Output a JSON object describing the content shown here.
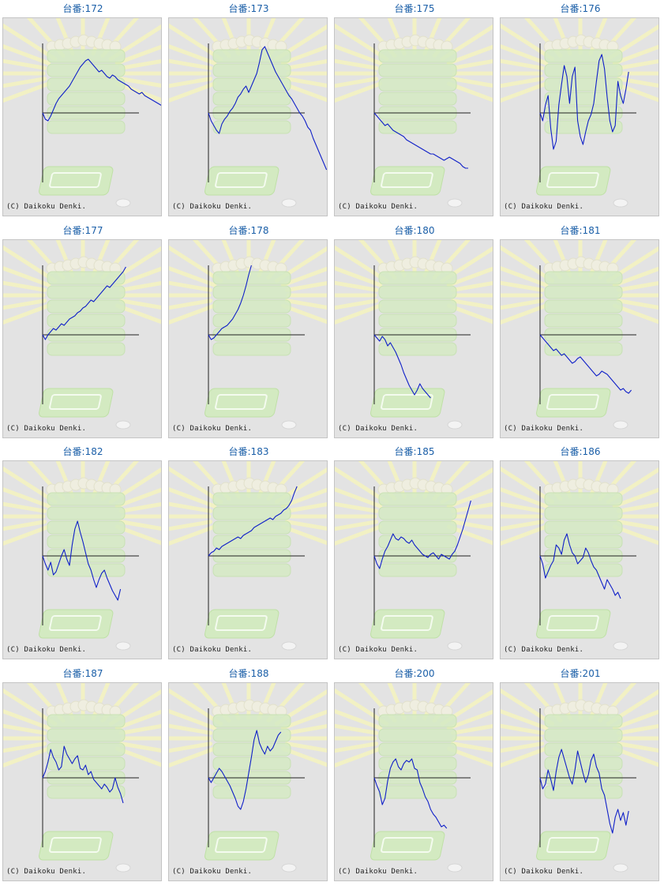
{
  "copyright": "(C) Daikoku Denki.",
  "chart_data": [
    {
      "type": "line",
      "title": "台番:172",
      "values": [
        0,
        -8,
        -10,
        -4,
        4,
        12,
        18,
        22,
        26,
        30,
        34,
        40,
        46,
        52,
        58,
        62,
        66,
        68,
        64,
        60,
        56,
        52,
        54,
        50,
        46,
        44,
        48,
        46,
        42,
        40,
        38,
        36,
        34,
        30,
        28,
        26,
        24,
        26,
        22,
        20,
        18,
        16,
        14,
        12,
        10,
        8,
        6,
        2,
        -4,
        -8,
        -6,
        -2,
        0,
        2,
        0,
        2,
        0
      ]
    },
    {
      "type": "line",
      "title": "台番:173",
      "values": [
        0,
        -10,
        -16,
        -22,
        -26,
        -14,
        -8,
        -4,
        2,
        6,
        12,
        20,
        24,
        30,
        34,
        26,
        34,
        42,
        50,
        64,
        80,
        84,
        76,
        68,
        60,
        52,
        46,
        40,
        34,
        28,
        22,
        18,
        12,
        6,
        0,
        -4,
        -10,
        -18,
        -22,
        -32,
        -40,
        -48,
        -56,
        -64,
        -72
      ]
    },
    {
      "type": "line",
      "title": "台番:175",
      "values": [
        0,
        -4,
        -8,
        -12,
        -16,
        -14,
        -18,
        -22,
        -24,
        -26,
        -28,
        -30,
        -34,
        -36,
        -38,
        -40,
        -42,
        -44,
        -46,
        -48,
        -50,
        -52,
        -52,
        -54,
        -56,
        -58,
        -60,
        -58,
        -56,
        -58,
        -60,
        -62,
        -64,
        -68,
        -70,
        -70
      ]
    },
    {
      "type": "line",
      "title": "台番:176",
      "values": [
        0,
        -10,
        10,
        22,
        -20,
        -46,
        -36,
        10,
        36,
        60,
        46,
        12,
        46,
        58,
        -10,
        -30,
        -40,
        -24,
        -10,
        -2,
        12,
        40,
        66,
        74,
        56,
        20,
        -10,
        -24,
        -16,
        40,
        22,
        12,
        30,
        52
      ]
    },
    {
      "type": "line",
      "title": "台番:177",
      "values": [
        0,
        -6,
        0,
        4,
        8,
        6,
        10,
        14,
        12,
        16,
        20,
        22,
        24,
        28,
        30,
        34,
        36,
        40,
        44,
        42,
        46,
        50,
        54,
        58,
        62,
        60,
        64,
        68,
        72,
        76,
        80,
        86
      ]
    },
    {
      "type": "line",
      "title": "台番:178",
      "values": [
        0,
        -6,
        -4,
        0,
        4,
        8,
        10,
        12,
        16,
        20,
        26,
        32,
        40,
        50,
        62,
        76,
        88
      ]
    },
    {
      "type": "line",
      "title": "台番:180",
      "values": [
        0,
        -4,
        -8,
        -2,
        -6,
        -14,
        -10,
        -16,
        -22,
        -30,
        -38,
        -48,
        -56,
        -64,
        -70,
        -76,
        -70,
        -62,
        -68,
        -72,
        -76,
        -80
      ]
    },
    {
      "type": "line",
      "title": "台番:181",
      "values": [
        0,
        -4,
        -8,
        -12,
        -16,
        -20,
        -18,
        -22,
        -26,
        -24,
        -28,
        -32,
        -36,
        -34,
        -30,
        -28,
        -32,
        -36,
        -40,
        -44,
        -48,
        -52,
        -50,
        -46,
        -48,
        -50,
        -54,
        -58,
        -62,
        -66,
        -70,
        -68,
        -72,
        -74,
        -70
      ]
    },
    {
      "type": "line",
      "title": "台番:182",
      "values": [
        0,
        -10,
        -18,
        -8,
        -24,
        -20,
        -10,
        0,
        8,
        -4,
        -12,
        14,
        34,
        44,
        30,
        18,
        4,
        -10,
        -18,
        -30,
        -40,
        -30,
        -22,
        -18,
        -28,
        -36,
        -44,
        -50,
        -56,
        -42
      ]
    },
    {
      "type": "line",
      "title": "台番:183",
      "values": [
        0,
        4,
        6,
        10,
        8,
        12,
        14,
        16,
        18,
        20,
        22,
        24,
        22,
        26,
        28,
        30,
        32,
        36,
        38,
        40,
        42,
        44,
        46,
        48,
        46,
        50,
        52,
        54,
        58,
        60,
        64,
        70,
        80,
        88
      ]
    },
    {
      "type": "line",
      "title": "台番:185",
      "values": [
        0,
        -10,
        -16,
        -4,
        6,
        12,
        20,
        28,
        22,
        20,
        24,
        22,
        18,
        16,
        20,
        14,
        10,
        6,
        2,
        0,
        -2,
        2,
        4,
        0,
        -4,
        2,
        0,
        -2,
        -4,
        2,
        6,
        14,
        24,
        34,
        46,
        58,
        70
      ]
    },
    {
      "type": "line",
      "title": "台番:186",
      "values": [
        0,
        -10,
        -28,
        -20,
        -12,
        -6,
        14,
        10,
        2,
        20,
        28,
        14,
        4,
        0,
        -10,
        -6,
        -2,
        10,
        4,
        -6,
        -14,
        -18,
        -26,
        -34,
        -42,
        -30,
        -36,
        -42,
        -50,
        -46,
        -54
      ]
    },
    {
      "type": "line",
      "title": "台番:187",
      "values": [
        0,
        8,
        20,
        36,
        26,
        20,
        10,
        14,
        40,
        30,
        24,
        18,
        24,
        28,
        12,
        10,
        16,
        4,
        8,
        -2,
        -6,
        -10,
        -14,
        -8,
        -12,
        -18,
        -14,
        0,
        -12,
        -20,
        -32
      ]
    },
    {
      "type": "line",
      "title": "台番:188",
      "values": [
        0,
        -6,
        0,
        6,
        12,
        8,
        2,
        -4,
        -10,
        -18,
        -26,
        -36,
        -40,
        -30,
        -14,
        6,
        26,
        48,
        60,
        44,
        36,
        30,
        40,
        34,
        38,
        46,
        54,
        58
      ]
    },
    {
      "type": "line",
      "title": "台番:200",
      "values": [
        0,
        -10,
        -18,
        -34,
        -26,
        -4,
        12,
        20,
        24,
        14,
        10,
        18,
        22,
        20,
        24,
        12,
        10,
        -6,
        -14,
        -24,
        -30,
        -40,
        -46,
        -50,
        -56,
        -62,
        -60,
        -64
      ]
    },
    {
      "type": "line",
      "title": "台番:201",
      "values": [
        0,
        -14,
        -8,
        10,
        -2,
        -16,
        8,
        26,
        36,
        24,
        12,
        0,
        -8,
        10,
        34,
        20,
        6,
        -6,
        4,
        22,
        30,
        14,
        6,
        -14,
        -22,
        -40,
        -58,
        -70,
        -50,
        -40,
        -54,
        -44,
        -60,
        -42
      ]
    }
  ]
}
